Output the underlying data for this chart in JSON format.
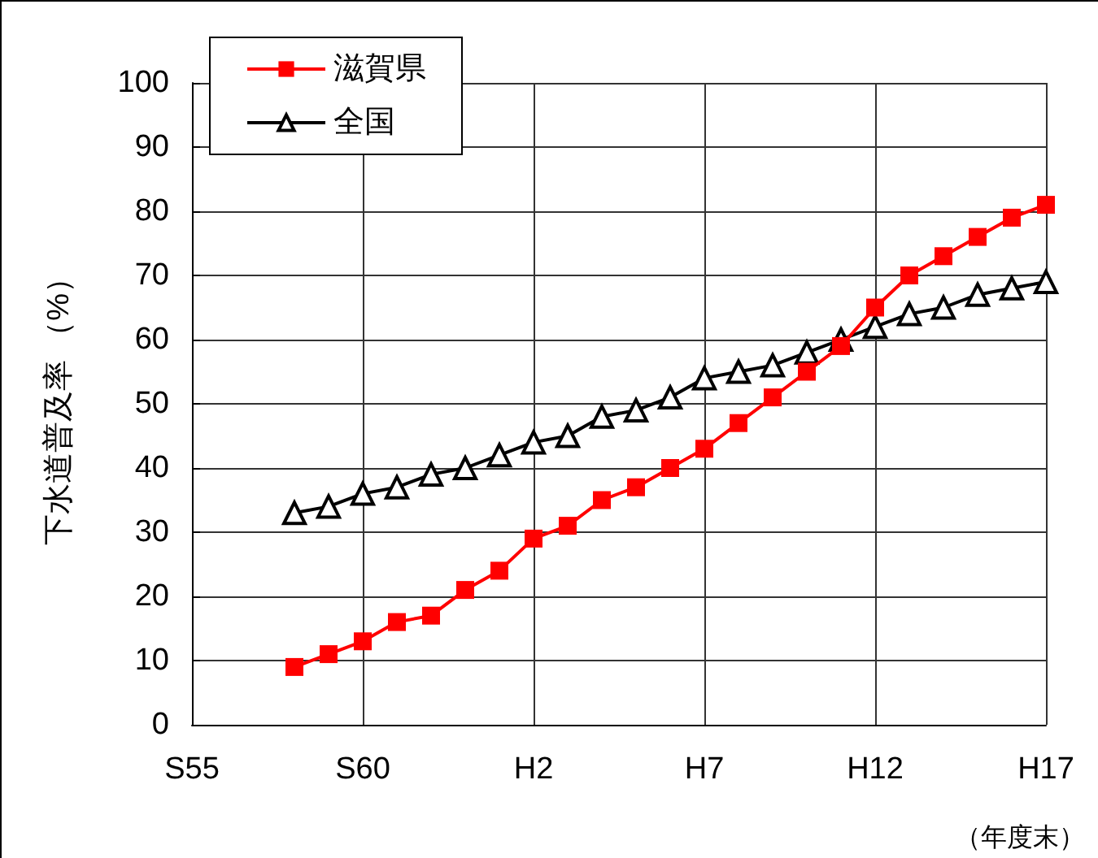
{
  "chart_data": {
    "type": "line",
    "ylabel": "下水道普及率 （%）",
    "annotations": [
      "（年度末）"
    ],
    "categories": [
      "S55",
      null,
      null,
      null,
      null,
      "S60",
      null,
      null,
      null,
      null,
      "H2",
      null,
      null,
      null,
      null,
      "H7",
      null,
      null,
      null,
      null,
      "H12",
      null,
      null,
      null,
      null,
      "H17"
    ],
    "series": [
      {
        "name": "滋賀県",
        "color": "#ff0000",
        "marker": "square",
        "values": [
          null,
          null,
          null,
          9,
          11,
          13,
          16,
          17,
          21,
          24,
          29,
          31,
          35,
          37,
          40,
          43,
          47,
          51,
          55,
          59,
          65,
          70,
          73,
          76,
          79,
          81
        ]
      },
      {
        "name": "全国",
        "color": "#000000",
        "marker": "triangle",
        "values": [
          null,
          null,
          null,
          33,
          34,
          36,
          37,
          39,
          40,
          42,
          44,
          45,
          48,
          49,
          51,
          54,
          55,
          56,
          58,
          60,
          62,
          64,
          65,
          67,
          68,
          69
        ]
      }
    ],
    "ylim": [
      0,
      100
    ],
    "yticks": [
      0,
      10,
      20,
      30,
      40,
      50,
      60,
      70,
      80,
      90,
      100
    ],
    "grid": true,
    "legend": "top left",
    "line_style": "solid"
  }
}
